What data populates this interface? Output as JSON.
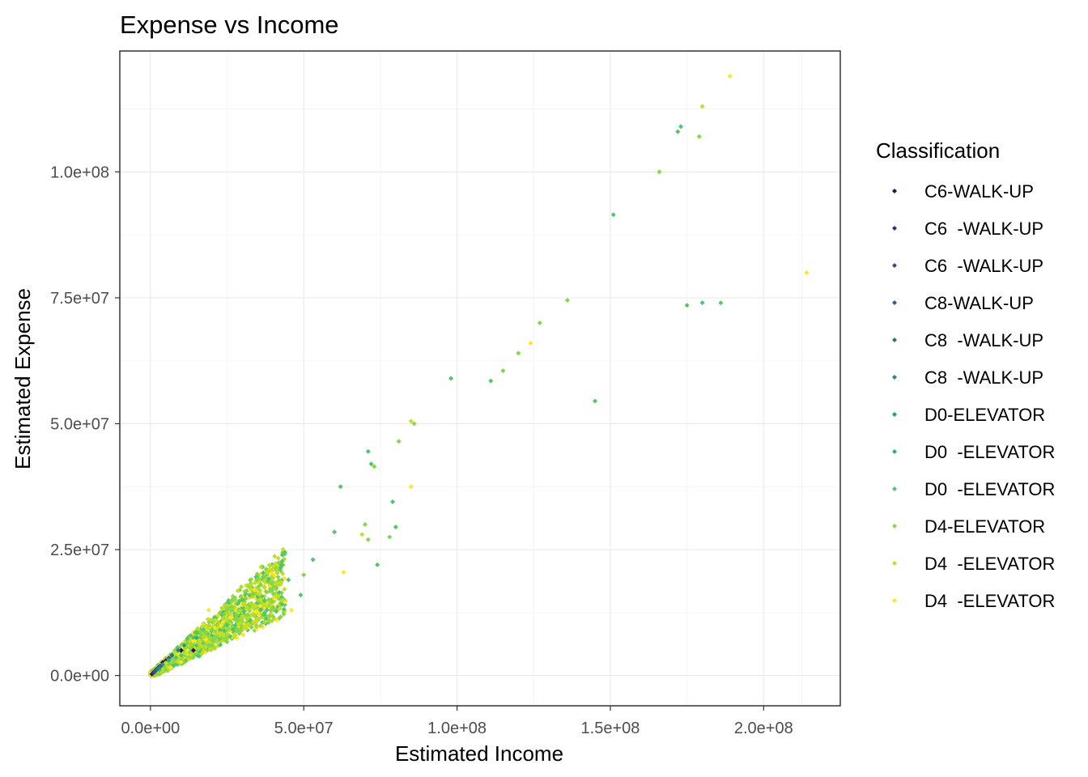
{
  "chart_data": {
    "type": "scatter",
    "title": "Expense vs Income",
    "xlabel": "Estimated Income",
    "ylabel": "Estimated Expense",
    "xlim": [
      -10000000,
      225000000
    ],
    "ylim": [
      -6000000,
      124000000
    ],
    "x_ticks": [
      0,
      50000000,
      100000000,
      150000000,
      200000000
    ],
    "x_tick_labels": [
      "0.0e+00",
      "5.0e+07",
      "1.0e+08",
      "1.5e+08",
      "2.0e+08"
    ],
    "y_ticks": [
      0,
      25000000,
      50000000,
      75000000,
      100000000
    ],
    "y_tick_labels": [
      "0.0e+00",
      "2.5e+07",
      "5.0e+07",
      "7.5e+07",
      "1.0e+08"
    ],
    "grid": true,
    "legend": {
      "title": "Classification",
      "position": "right",
      "entries": [
        "C6-WALK-UP",
        "C6  -WALK-UP",
        "C6  -WALK-UP",
        "C8-WALK-UP",
        "C8  -WALK-UP",
        "C8  -WALK-UP",
        "D0-ELEVATOR",
        "D0  -ELEVATOR",
        "D0  -ELEVATOR",
        "D4-ELEVATOR",
        "D4  -ELEVATOR",
        "D4  -ELEVATOR"
      ],
      "colors": [
        "#440154",
        "#482173",
        "#433e85",
        "#38598c",
        "#2d708e",
        "#25858e",
        "#1e9b8a",
        "#2ab07f",
        "#51c56a",
        "#86d549",
        "#c2df23",
        "#fde725"
      ]
    },
    "series": [
      {
        "name": "C6-WALK-UP",
        "color": "#440154",
        "points": [
          [
            500000,
            300000
          ],
          [
            1000000,
            600000
          ],
          [
            1500000,
            900000
          ],
          [
            2000000,
            1300000
          ],
          [
            3000000,
            1800000
          ],
          [
            4000000,
            2600000
          ],
          [
            14000000,
            5000000
          ],
          [
            10000000,
            5000000
          ]
        ]
      },
      {
        "name": "C6  -WALK-UP",
        "color": "#482173",
        "points": [
          [
            800000,
            500000
          ],
          [
            2500000,
            1500000
          ],
          [
            5000000,
            3000000
          ]
        ]
      },
      {
        "name": "C6  -WALK-UP",
        "color": "#433e85",
        "points": [
          [
            1200000,
            700000
          ],
          [
            3500000,
            2000000
          ]
        ]
      },
      {
        "name": "C8-WALK-UP",
        "color": "#38598c",
        "points": [
          [
            1800000,
            1000000
          ],
          [
            6000000,
            3500000
          ]
        ]
      },
      {
        "name": "C8  -WALK-UP",
        "color": "#2d708e",
        "points": [
          [
            2200000,
            1300000
          ],
          [
            7000000,
            4000000
          ]
        ]
      },
      {
        "name": "C8  -WALK-UP",
        "color": "#25858e",
        "points": [
          [
            3000000,
            1600000
          ],
          [
            9000000,
            5000000
          ]
        ]
      },
      {
        "name": "D0-ELEVATOR",
        "color": "#1e9b8a",
        "points": [
          [
            4000000,
            2200000
          ],
          [
            11000000,
            6000000
          ]
        ]
      },
      {
        "name": "D0  -ELEVATOR",
        "color": "#2ab07f",
        "points": [
          [
            6000000,
            3000000
          ],
          [
            15000000,
            7500000
          ]
        ]
      },
      {
        "name": "D0  -ELEVATOR",
        "color": "#51c56a",
        "points": [
          [
            98000000,
            59000000
          ],
          [
            111000000,
            58500000
          ],
          [
            145000000,
            54500000
          ],
          [
            151000000,
            91500000
          ],
          [
            173000000,
            109000000
          ],
          [
            172000000,
            108000000
          ],
          [
            175000000,
            73500000
          ],
          [
            180000000,
            74000000
          ],
          [
            186000000,
            74000000
          ],
          [
            62000000,
            37500000
          ],
          [
            79000000,
            34500000
          ],
          [
            74000000,
            22000000
          ],
          [
            60000000,
            28500000
          ],
          [
            71000000,
            44500000
          ],
          [
            72000000,
            42000000
          ],
          [
            80000000,
            29500000
          ],
          [
            53000000,
            23000000
          ],
          [
            49000000,
            16000000
          ],
          [
            45000000,
            19000000
          ],
          [
            42000000,
            16500000
          ],
          [
            30000000,
            15000000
          ],
          [
            38000000,
            13000000
          ],
          [
            25000000,
            10000000
          ],
          [
            20000000,
            8000000
          ],
          [
            15000000,
            6000000
          ],
          [
            10000000,
            4000000
          ]
        ]
      },
      {
        "name": "D4-ELEVATOR",
        "color": "#86d549",
        "points": [
          [
            166000000,
            100000000
          ],
          [
            179000000,
            107000000
          ],
          [
            136000000,
            74500000
          ],
          [
            115000000,
            60500000
          ],
          [
            120000000,
            64000000
          ],
          [
            127000000,
            70000000
          ],
          [
            81000000,
            46500000
          ],
          [
            86000000,
            50000000
          ],
          [
            73000000,
            41500000
          ],
          [
            71000000,
            27000000
          ],
          [
            78000000,
            27500000
          ],
          [
            70000000,
            30000000
          ],
          [
            50000000,
            20000000
          ],
          [
            36000000,
            18000000
          ],
          [
            28000000,
            12000000
          ],
          [
            18000000,
            8500000
          ],
          [
            12000000,
            6500000
          ]
        ]
      },
      {
        "name": "D4  -ELEVATOR",
        "color": "#c2df23",
        "points": [
          [
            180000000,
            113000000
          ],
          [
            85000000,
            50500000
          ],
          [
            69000000,
            28000000
          ],
          [
            40000000,
            21000000
          ],
          [
            22000000,
            9500000
          ],
          [
            16000000,
            7000000
          ],
          [
            8000000,
            4500000
          ],
          [
            5000000,
            2500000
          ]
        ]
      },
      {
        "name": "D4  -ELEVATOR",
        "color": "#fde725",
        "points": [
          [
            189000000,
            119000000
          ],
          [
            214000000,
            80000000
          ],
          [
            124000000,
            66000000
          ],
          [
            85000000,
            37500000
          ],
          [
            63000000,
            20500000
          ],
          [
            46000000,
            13000000
          ],
          [
            34000000,
            17000000
          ],
          [
            26000000,
            11500000
          ],
          [
            19000000,
            13000000
          ],
          [
            12000000,
            5000000
          ]
        ]
      }
    ],
    "dense_cluster": {
      "note_points_generated": false,
      "x_range": [
        0,
        46000000
      ],
      "y_range": [
        0,
        21000000
      ]
    }
  }
}
